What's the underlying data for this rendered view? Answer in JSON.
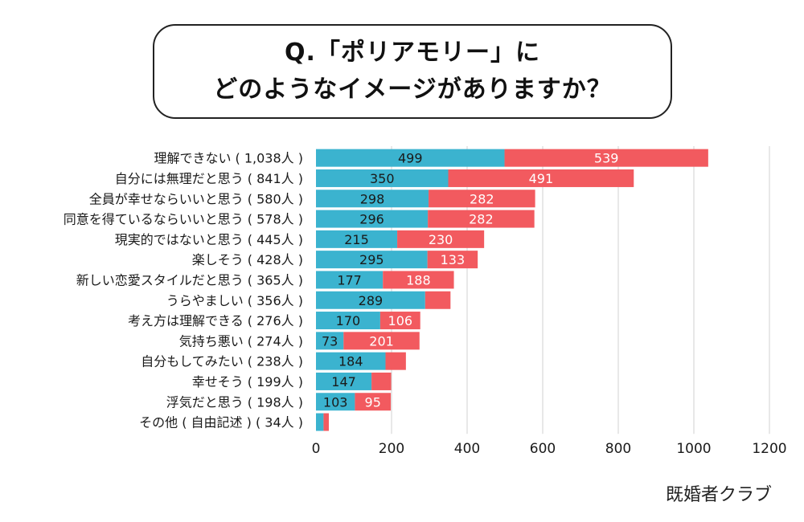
{
  "title": {
    "line1": "Q.「ポリアモリー」に",
    "line2": "どのようなイメージがありますか？"
  },
  "source": "既婚者クラブ",
  "colors": {
    "series_a": "#3bb3cf",
    "series_b": "#f25a5f",
    "grid": "#d9d9d9",
    "text": "#1a1a1a",
    "label_light": "#ffffff"
  },
  "chart_data": {
    "type": "bar",
    "orientation": "horizontal",
    "stacked": true,
    "categories": [
      "理解できない ( 1,038人 )",
      "自分には無理だと思う ( 841人 )",
      "全員が幸せならいいと思う ( 580人 )",
      "同意を得ているならいいと思う ( 578人 )",
      "現実的ではないと思う ( 445人 )",
      "楽しそう ( 428人 )",
      "新しい恋愛スタイルだと思う ( 365人 )",
      "うらやましい ( 356人 )",
      "考え方は理解できる ( 276人 )",
      "気持ち悪い ( 274人 )",
      "自分もしてみたい ( 238人 )",
      "幸せそう ( 199人 )",
      "浮気だと思う ( 198人 )",
      "その他 ( 自由記述 ) ( 34人 )"
    ],
    "series": [
      {
        "values": [
          499,
          350,
          298,
          296,
          215,
          295,
          177,
          289,
          170,
          73,
          184,
          147,
          103,
          20
        ]
      },
      {
        "values": [
          539,
          491,
          282,
          282,
          230,
          133,
          188,
          67,
          106,
          201,
          54,
          52,
          95,
          14
        ]
      }
    ],
    "value_labels": [
      [
        "499",
        "350",
        "298",
        "296",
        "215",
        "295",
        "177",
        "289",
        "170",
        "73",
        "184",
        "147",
        "103",
        ""
      ],
      [
        "539",
        "491",
        "282",
        "282",
        "230",
        "133",
        "188",
        "",
        "106",
        "201",
        "",
        "",
        "95",
        ""
      ]
    ],
    "xlim": [
      0,
      1200
    ],
    "xticks": [
      "0",
      "200",
      "400",
      "600",
      "800",
      "1000",
      "1200"
    ],
    "grid": true,
    "legend": "none"
  }
}
